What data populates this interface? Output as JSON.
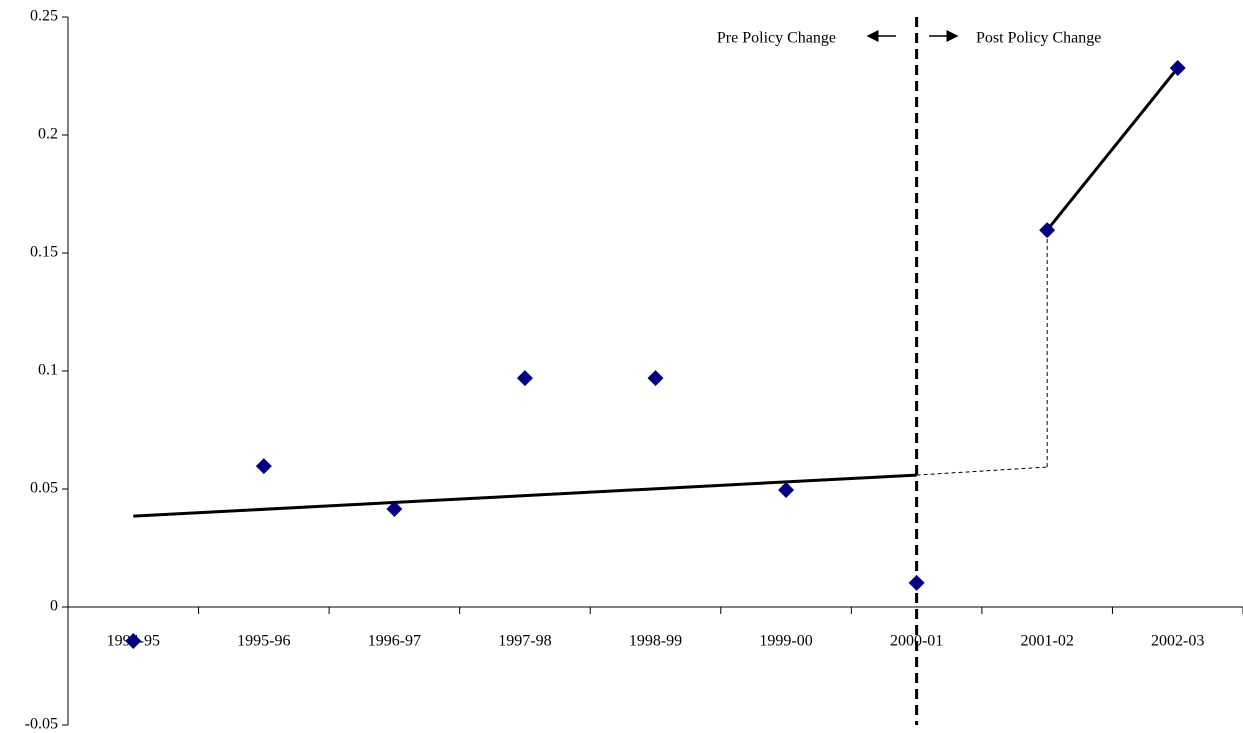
{
  "chart_data": {
    "type": "scatter",
    "categories": [
      "1994-95",
      "1995-96",
      "1996-97",
      "1997-98",
      "1998-99",
      "1999-00",
      "2000-01",
      "2001-02",
      "2002-03"
    ],
    "ylim": [
      -0.05,
      0.25
    ],
    "yticks": [
      -0.05,
      0,
      0.05,
      0.1,
      0.15,
      0.2,
      0.25
    ],
    "series": [
      {
        "color": "#000080",
        "marker": "diamond",
        "values": [
          -0.0144,
          0.0597,
          0.0415,
          0.097,
          0.097,
          0.0496,
          0.0102,
          0.1597,
          0.2284
        ]
      }
    ],
    "lines": [
      {
        "color": "#000000",
        "style": "solid",
        "width": 3,
        "x": [
          "1994-95",
          "2000-01"
        ],
        "values": [
          0.0385,
          0.0559
        ]
      },
      {
        "color": "#000000",
        "style": "dashed",
        "width": 1,
        "x": [
          "2000-01",
          "2001-02"
        ],
        "values": [
          0.0559,
          0.0593
        ]
      },
      {
        "color": "#000000",
        "style": "dashed",
        "width": 1,
        "x": [
          "2001-02",
          "2001-02"
        ],
        "values": [
          0.0593,
          0.1597
        ]
      },
      {
        "color": "#000000",
        "style": "solid",
        "width": 3,
        "x": [
          "2001-02",
          "2002-03"
        ],
        "values": [
          0.1597,
          0.2284
        ]
      }
    ],
    "divider": {
      "category": "2000-01",
      "style": "dashed"
    },
    "annotations": [
      "Pre Policy Change",
      "Post Policy Change"
    ]
  }
}
